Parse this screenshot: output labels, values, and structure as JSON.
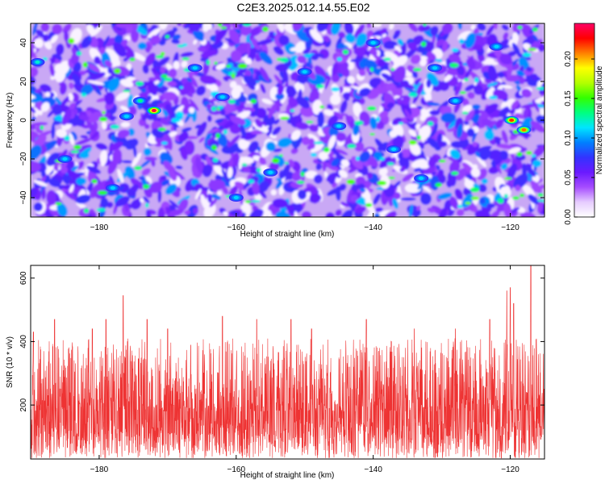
{
  "title": "C2E3.2025.012.14.55.E02",
  "chart_data": [
    {
      "type": "heatmap",
      "xlabel": "Height of straight line (km)",
      "ylabel": "Frequency (Hz)",
      "xlim": [
        -190,
        -115
      ],
      "ylim": [
        -50,
        50
      ],
      "xticks": [
        -180,
        -160,
        -140,
        -120
      ],
      "yticks": [
        -40,
        -20,
        0,
        20,
        40
      ],
      "colorbar": {
        "label": "Normalized spectral amplitude",
        "range": [
          0,
          0.245
        ],
        "ticks": [
          "0.00",
          "0.05",
          "0.10",
          "0.15",
          "0.20"
        ],
        "tick_values": [
          0,
          0.05,
          0.1,
          0.15,
          0.2
        ],
        "palette": [
          "#ffffff",
          "#e6ccff",
          "#a64dff",
          "#6a1aff",
          "#3333ff",
          "#0080ff",
          "#00e5ff",
          "#00ff80",
          "#33ff00",
          "#b3ff00",
          "#ffff00",
          "#ff8000",
          "#ff0000",
          "#ff0066"
        ]
      },
      "hotspots": [
        {
          "x": -172,
          "y": 5,
          "value": 0.24
        },
        {
          "x": -119.8,
          "y": 0,
          "value": 0.22
        },
        {
          "x": -118,
          "y": -5,
          "value": 0.21
        },
        {
          "x": -174,
          "y": 10,
          "value": 0.13
        },
        {
          "x": -189,
          "y": 30,
          "value": 0.12
        },
        {
          "x": -150,
          "y": 25,
          "value": 0.11
        },
        {
          "x": -176,
          "y": 2,
          "value": 0.1
        },
        {
          "x": -145,
          "y": -3,
          "value": 0.09
        },
        {
          "x": -155,
          "y": -27,
          "value": 0.09
        },
        {
          "x": -133,
          "y": -30,
          "value": 0.09
        },
        {
          "x": -131,
          "y": 27,
          "value": 0.08
        },
        {
          "x": -128,
          "y": 10,
          "value": 0.08
        },
        {
          "x": -166,
          "y": 27,
          "value": 0.08
        },
        {
          "x": -162,
          "y": 12,
          "value": 0.08
        },
        {
          "x": -185,
          "y": -20,
          "value": 0.07
        },
        {
          "x": -160,
          "y": -40,
          "value": 0.07
        },
        {
          "x": -140,
          "y": 40,
          "value": 0.07
        },
        {
          "x": -122,
          "y": 38,
          "value": 0.07
        },
        {
          "x": -178,
          "y": -35,
          "value": 0.07
        },
        {
          "x": -137,
          "y": -15,
          "value": 0.06
        }
      ]
    },
    {
      "type": "line",
      "xlabel": "Height of straight line (km)",
      "ylabel": "SNR (10 * v/v)",
      "xlim": [
        -190,
        -115
      ],
      "ylim": [
        30,
        640
      ],
      "xticks": [
        -180,
        -160,
        -140,
        -120
      ],
      "yticks": [
        200,
        400,
        600
      ],
      "series": [
        {
          "color": "#ee3333",
          "baseline": 170,
          "peaks": [
            {
              "x": -189.6,
              "y": 430
            },
            {
              "x": -186.5,
              "y": 470
            },
            {
              "x": -181,
              "y": 440
            },
            {
              "x": -179,
              "y": 470
            },
            {
              "x": -176.5,
              "y": 545
            },
            {
              "x": -173,
              "y": 470
            },
            {
              "x": -170,
              "y": 440
            },
            {
              "x": -162,
              "y": 480
            },
            {
              "x": -157,
              "y": 470
            },
            {
              "x": -152,
              "y": 470
            },
            {
              "x": -149,
              "y": 440
            },
            {
              "x": -141,
              "y": 470
            },
            {
              "x": -134,
              "y": 440
            },
            {
              "x": -128,
              "y": 440
            },
            {
              "x": -123,
              "y": 470
            },
            {
              "x": -120.5,
              "y": 560
            },
            {
              "x": -120,
              "y": 570
            },
            {
              "x": -119.5,
              "y": 520
            },
            {
              "x": -117,
              "y": 640
            }
          ]
        }
      ]
    }
  ]
}
